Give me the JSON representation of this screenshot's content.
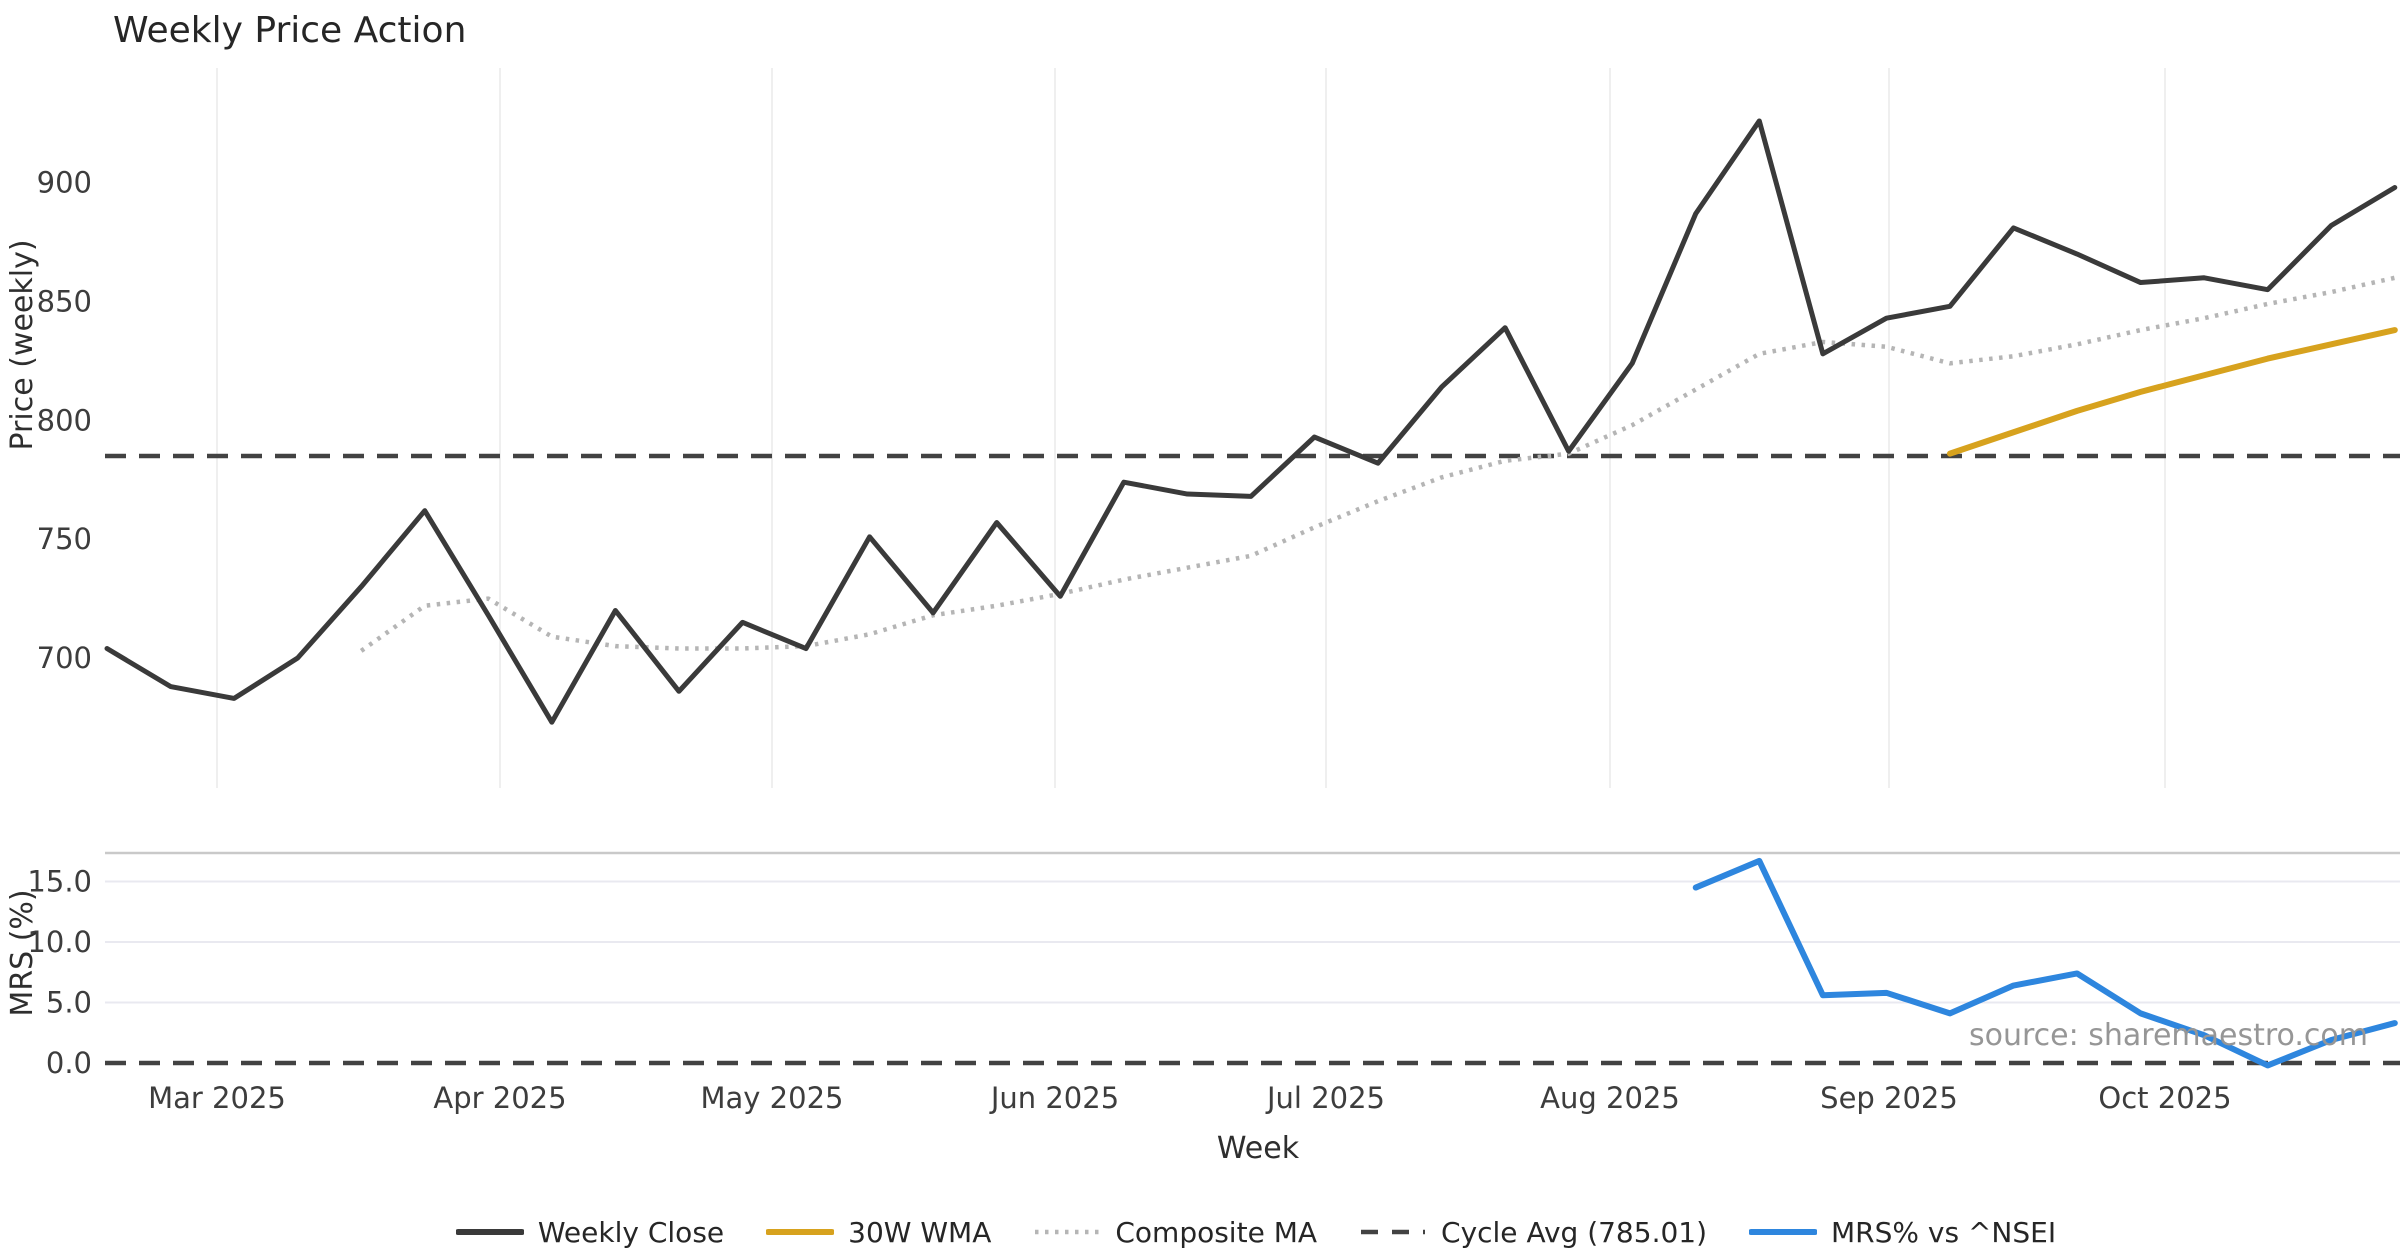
{
  "title": "Weekly Price Action",
  "source_note": "source: sharemaestro.com",
  "price_axis": {
    "label": "Price (weekly)",
    "ticks": [
      900,
      850,
      800,
      750,
      700
    ]
  },
  "mrs_axis": {
    "label": "MRS (%)",
    "ticks": [
      15.0,
      10.0,
      5.0,
      0.0
    ]
  },
  "x_axis": {
    "label": "Week",
    "tick_labels": [
      "Mar 2025",
      "Apr 2025",
      "May 2025",
      "Jun 2025",
      "Jul 2025",
      "Aug 2025",
      "Sep 2025",
      "Oct 2025"
    ]
  },
  "legend": {
    "weekly_close": "Weekly Close",
    "wma30": "30W WMA",
    "composite_ma": "Composite MA",
    "cycle_avg": "Cycle Avg (785.01)",
    "mrs": "MRS% vs ^NSEI"
  },
  "colors": {
    "weekly_close": "#3a3a3a",
    "wma30": "#d7a21e",
    "composite_ma": "#b5b5b5",
    "cycle_avg": "#424242",
    "mrs": "#2e86de",
    "vgrid": "#efefef",
    "hgrid": "#e9e9f0",
    "panel_border": "#c9c9c9",
    "tick_text": "#3d3d3d",
    "source": "#969696"
  },
  "chart_data": [
    {
      "type": "line",
      "panel": "price",
      "title": "Weekly Price Action",
      "xlabel": "Week",
      "ylabel": "Price (weekly)",
      "x_tick_labels": [
        "Mar 2025",
        "Apr 2025",
        "May 2025",
        "Jun 2025",
        "Jul 2025",
        "Aug 2025",
        "Sep 2025",
        "Oct 2025"
      ],
      "ylim": [
        645,
        945
      ],
      "grid": "vertical-only",
      "legend_position": "bottom-center",
      "weeks_total": 37,
      "series": [
        {
          "name": "Weekly Close",
          "style": "solid",
          "start_week": 0,
          "values": [
            704,
            688,
            683,
            700,
            730,
            762,
            718,
            673,
            720,
            686,
            715,
            704,
            751,
            719,
            757,
            726,
            774,
            769,
            768,
            793,
            782,
            814,
            839,
            787,
            824,
            887,
            926,
            828,
            843,
            848,
            881,
            870,
            858,
            860,
            855,
            882,
            898
          ]
        },
        {
          "name": "Composite MA",
          "style": "dotted",
          "start_week": 4,
          "values": [
            703,
            722,
            725,
            709,
            705,
            704,
            704,
            705,
            710,
            718,
            722,
            727,
            733,
            738,
            743,
            755,
            766,
            776,
            783,
            786,
            798,
            813,
            828,
            833,
            831,
            824,
            827,
            832,
            838,
            843,
            849,
            854,
            860
          ]
        },
        {
          "name": "30W WMA",
          "style": "solid",
          "start_week": 29,
          "values": [
            786,
            795,
            804,
            812,
            819,
            826,
            832,
            838
          ]
        },
        {
          "name": "Cycle Avg (785.01)",
          "style": "dashed-horizontal",
          "value": 785.01
        }
      ]
    },
    {
      "type": "line",
      "panel": "mrs",
      "ylabel": "MRS (%)",
      "ylim": [
        -2.5,
        17.5
      ],
      "grid": "horizontal-only",
      "zero_line": 0.0,
      "series": [
        {
          "name": "MRS% vs ^NSEI",
          "style": "solid",
          "start_week": 25,
          "values": [
            14.5,
            16.7,
            5.6,
            5.8,
            4.1,
            6.4,
            7.4,
            4.1,
            2.3,
            -0.2,
            1.9,
            3.3
          ]
        }
      ]
    }
  ]
}
